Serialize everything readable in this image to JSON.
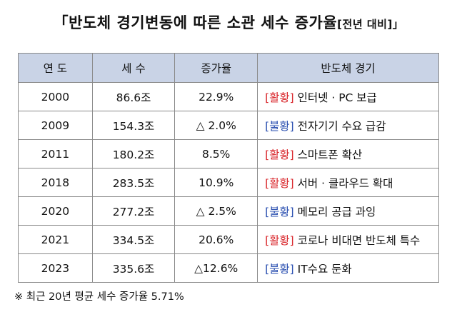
{
  "title": {
    "main": "「반도체 경기변동에 따른 소관 세수 증가율",
    "suffix": "[전년 대비]」"
  },
  "table": {
    "headers": [
      "연 도",
      "세 수",
      "증가율",
      "반도체 경기"
    ],
    "rows": [
      {
        "year": "2000",
        "revenue": "86.6조",
        "rate": "22.9%",
        "status": "[활황]",
        "status_color": "#d9262b",
        "desc": "인터넷 · PC 보급"
      },
      {
        "year": "2009",
        "revenue": "154.3조",
        "rate": "△ 2.0%",
        "status": "[불황]",
        "status_color": "#2a4fb0",
        "desc": "전자기기 수요 급감"
      },
      {
        "year": "2011",
        "revenue": "180.2조",
        "rate": "8.5%",
        "status": "[활황]",
        "status_color": "#d9262b",
        "desc": "스마트폰 확산"
      },
      {
        "year": "2018",
        "revenue": "283.5조",
        "rate": "10.9%",
        "status": "[활황]",
        "status_color": "#d9262b",
        "desc": "서버 · 클라우드 확대"
      },
      {
        "year": "2020",
        "revenue": "277.2조",
        "rate": "△ 2.5%",
        "status": "[불황]",
        "status_color": "#2a4fb0",
        "desc": "메모리 공급 과잉"
      },
      {
        "year": "2021",
        "revenue": "334.5조",
        "rate": "20.6%",
        "status": "[활황]",
        "status_color": "#d9262b",
        "desc": "코로나 비대면 반도체 특수"
      },
      {
        "year": "2023",
        "revenue": "335.6조",
        "rate": "△12.6%",
        "status": "[불황]",
        "status_color": "#2a4fb0",
        "desc": "IT수요 둔화"
      }
    ]
  },
  "footnote": "※ 최근 20년 평균 세수 증가율 5.71%"
}
